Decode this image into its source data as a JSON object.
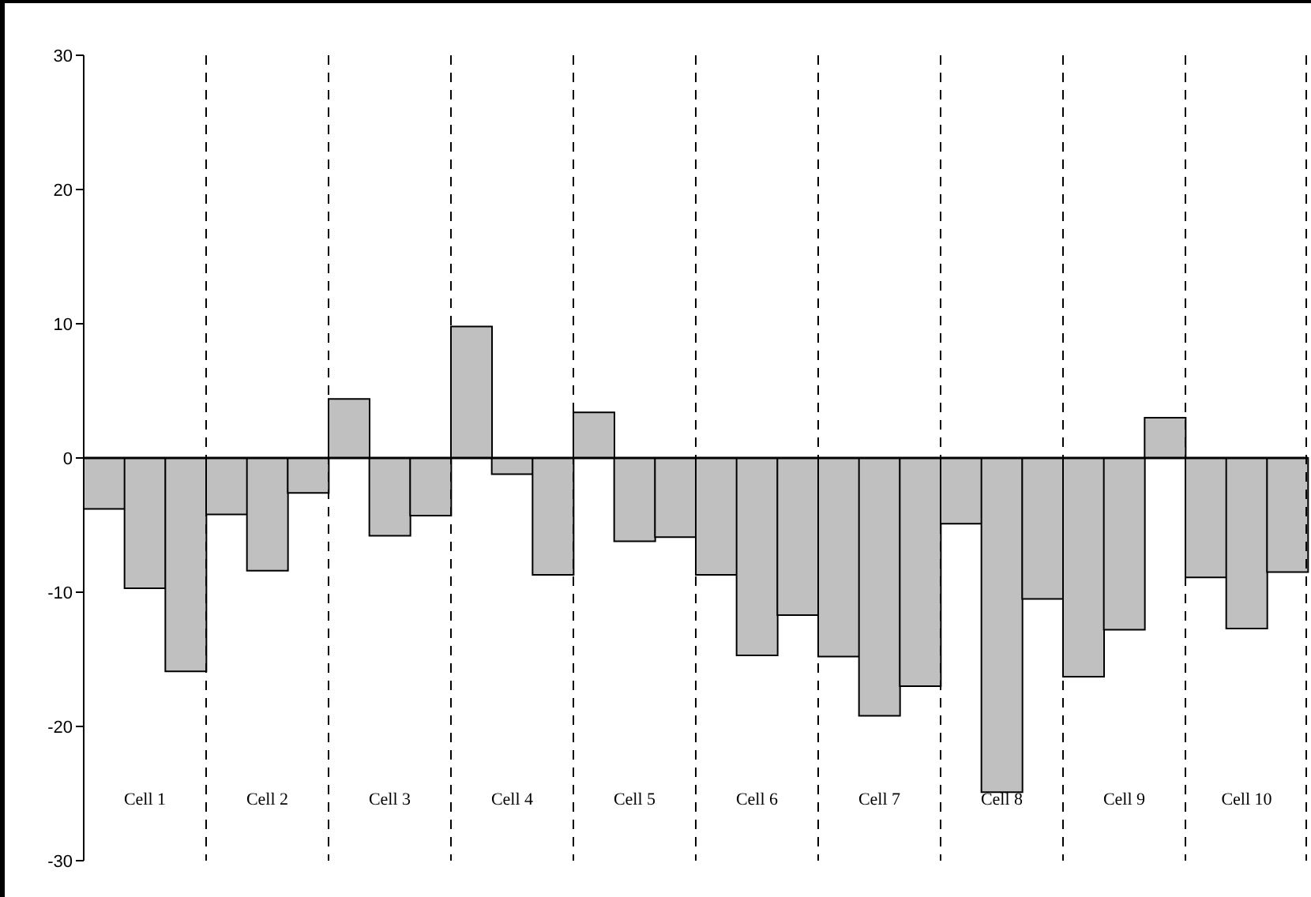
{
  "chart_data": {
    "type": "bar",
    "categories": [
      null,
      null,
      null,
      null,
      null,
      null,
      null,
      null,
      null,
      null,
      null,
      null,
      null,
      null,
      null,
      null,
      null,
      null,
      null,
      null,
      null,
      null,
      null,
      null,
      null,
      null,
      null,
      null,
      null,
      null
    ],
    "values": [
      -3.8,
      -9.7,
      -15.9,
      -4.2,
      -8.4,
      -2.6,
      4.4,
      -5.8,
      -4.3,
      9.8,
      -1.2,
      -8.7,
      3.4,
      -6.2,
      -5.9,
      -8.7,
      -14.7,
      -11.7,
      -14.8,
      -19.2,
      -17.0,
      -4.9,
      -24.9,
      -10.5,
      -16.3,
      -12.8,
      3.0,
      -8.9,
      -12.7,
      -8.5
    ],
    "color": "#c0c0c0",
    "ylim": [
      -30,
      30
    ],
    "yticks": [
      -30,
      -20,
      -10,
      0,
      10,
      20,
      30
    ],
    "tick_labels": "y",
    "grid": false,
    "legend": false,
    "ref_lines": [
      {
        "axis": "y",
        "value": 0,
        "color": "#000000",
        "line_style": "solid"
      }
    ],
    "annotations": [
      "Cell 1",
      "Cell 2",
      "Cell 3",
      "Cell 4",
      "Cell 5",
      "Cell 6",
      "Cell 7",
      "Cell 8",
      "Cell 9",
      "Cell 10"
    ]
  }
}
